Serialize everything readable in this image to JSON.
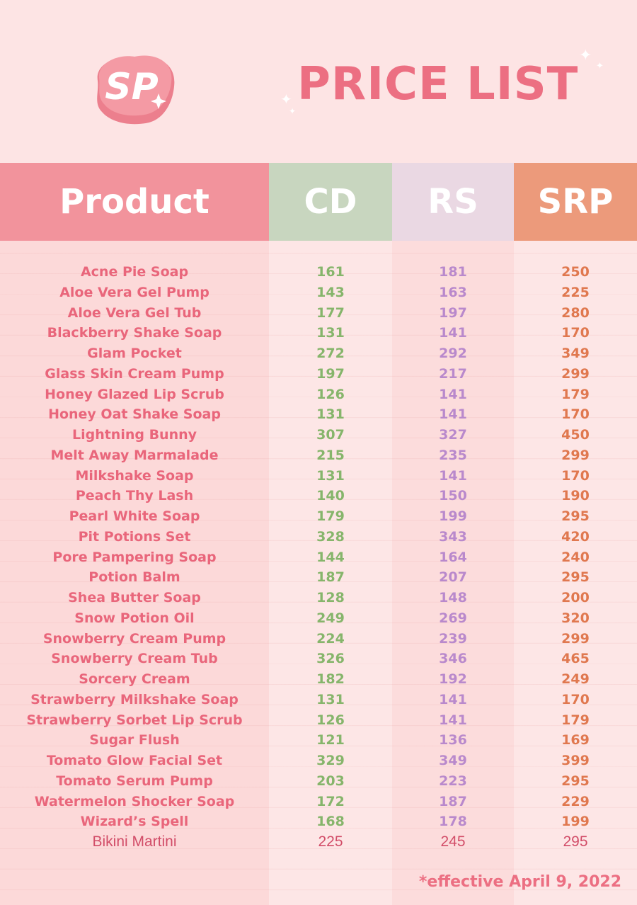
{
  "logo": {
    "text": "SP"
  },
  "title": "PRICE LIST",
  "colors": {
    "background": "#fde4e4",
    "product_header": "#f2939c",
    "cd_header": "#c8d6bf",
    "rs_header": "#ead8e3",
    "srp_header": "#ec9a7b",
    "product_text": "#e9667b",
    "cd_text": "#86b56b",
    "rs_text": "#b989cc",
    "srp_text": "#e0784f"
  },
  "headers": {
    "product": "Product",
    "cd": "CD",
    "rs": "RS",
    "srp": "SRP"
  },
  "rows": [
    {
      "name": "Acne Pie Soap",
      "cd": "161",
      "rs": "181",
      "srp": "250"
    },
    {
      "name": "Aloe Vera Gel Pump",
      "cd": "143",
      "rs": "163",
      "srp": "225"
    },
    {
      "name": "Aloe Vera Gel Tub",
      "cd": "177",
      "rs": "197",
      "srp": "280"
    },
    {
      "name": "Blackberry Shake Soap",
      "cd": "131",
      "rs": "141",
      "srp": "170"
    },
    {
      "name": "Glam Pocket",
      "cd": "272",
      "rs": "292",
      "srp": "349"
    },
    {
      "name": "Glass Skin Cream Pump",
      "cd": "197",
      "rs": "217",
      "srp": "299"
    },
    {
      "name": "Honey Glazed Lip Scrub",
      "cd": "126",
      "rs": "141",
      "srp": "179"
    },
    {
      "name": "Honey Oat Shake Soap",
      "cd": "131",
      "rs": "141",
      "srp": "170"
    },
    {
      "name": "Lightning Bunny",
      "cd": "307",
      "rs": "327",
      "srp": "450"
    },
    {
      "name": "Melt Away Marmalade",
      "cd": "215",
      "rs": "235",
      "srp": "299"
    },
    {
      "name": "Milkshake Soap",
      "cd": "131",
      "rs": "141",
      "srp": "170"
    },
    {
      "name": "Peach Thy Lash",
      "cd": "140",
      "rs": "150",
      "srp": "190"
    },
    {
      "name": "Pearl White Soap",
      "cd": "179",
      "rs": "199",
      "srp": "295"
    },
    {
      "name": "Pit Potions Set",
      "cd": "328",
      "rs": "343",
      "srp": "420"
    },
    {
      "name": "Pore Pampering Soap",
      "cd": "144",
      "rs": "164",
      "srp": "240"
    },
    {
      "name": "Potion Balm",
      "cd": "187",
      "rs": "207",
      "srp": "295"
    },
    {
      "name": "Shea Butter Soap",
      "cd": "128",
      "rs": "148",
      "srp": "200"
    },
    {
      "name": "Snow Potion Oil",
      "cd": "249",
      "rs": "269",
      "srp": "320"
    },
    {
      "name": "Snowberry Cream Pump",
      "cd": "224",
      "rs": "239",
      "srp": "299"
    },
    {
      "name": "Snowberry Cream Tub",
      "cd": "326",
      "rs": "346",
      "srp": "465"
    },
    {
      "name": "Sorcery Cream",
      "cd": "182",
      "rs": "192",
      "srp": "249"
    },
    {
      "name": "Strawberry Milkshake Soap",
      "cd": "131",
      "rs": "141",
      "srp": "170"
    },
    {
      "name": "Strawberry Sorbet Lip Scrub",
      "cd": "126",
      "rs": "141",
      "srp": "179"
    },
    {
      "name": "Sugar Flush",
      "cd": "121",
      "rs": "136",
      "srp": "169"
    },
    {
      "name": "Tomato Glow Facial Set",
      "cd": "329",
      "rs": "349",
      "srp": "399"
    },
    {
      "name": "Tomato Serum Pump",
      "cd": "203",
      "rs": "223",
      "srp": "295"
    },
    {
      "name": "Watermelon Shocker Soap",
      "cd": "172",
      "rs": "187",
      "srp": "229"
    },
    {
      "name": "Wizard’s Spell",
      "cd": "168",
      "rs": "178",
      "srp": "199"
    },
    {
      "name": "Bikini Martini",
      "cd": "225",
      "rs": "245",
      "srp": "295"
    }
  ],
  "footnote": "*effective April 9, 2022"
}
